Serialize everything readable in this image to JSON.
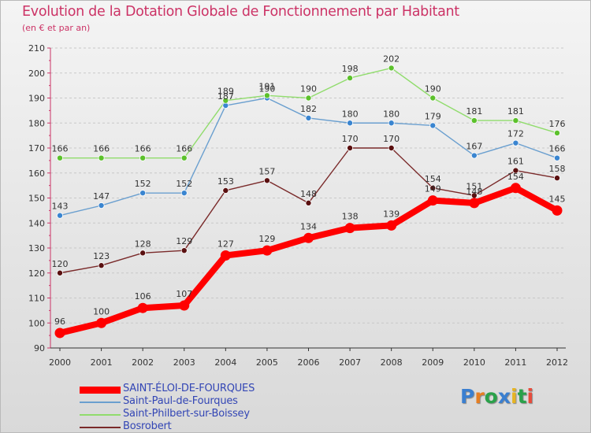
{
  "header": {
    "title": "Evolution de la Dotation Globale de Fonctionnement par Habitant",
    "subtitle": "(en € et par an)"
  },
  "logo": {
    "text": "Proxiti",
    "colors": [
      "#3a7fd0",
      "#e67e22",
      "#2aa14a",
      "#3a7fd0",
      "#e6b422",
      "#2aa14a",
      "#e74c3c"
    ]
  },
  "chart_data": {
    "type": "line",
    "title": "Evolution de la Dotation Globale de Fonctionnement par Habitant",
    "subtitle": "(en € et par an)",
    "xlabel": "",
    "ylabel": "",
    "x": [
      "2000",
      "2001",
      "2002",
      "2003",
      "2004",
      "2005",
      "2006",
      "2007",
      "2008",
      "2009",
      "2010",
      "2011",
      "2012"
    ],
    "ylim": [
      90,
      210
    ],
    "yticks": [
      90,
      100,
      110,
      120,
      130,
      140,
      150,
      160,
      170,
      180,
      190,
      200,
      210
    ],
    "grid": "horizontal dashed",
    "legend": "bottom-left",
    "series": [
      {
        "name": "SAINT-ÉLOI-DE-FOURQUES",
        "color": "#ff0000",
        "markerColor": "#ff0000",
        "emphasis": true,
        "values": [
          96,
          100,
          106,
          107,
          127,
          129,
          134,
          138,
          139,
          149,
          148,
          154,
          145
        ]
      },
      {
        "name": "Saint-Paul-de-Fourques",
        "color": "#6a9fcf",
        "markerColor": "#3a85d0",
        "emphasis": false,
        "values": [
          143,
          147,
          152,
          152,
          187,
          190,
          182,
          180,
          180,
          179,
          167,
          172,
          166
        ]
      },
      {
        "name": "Saint-Philbert-sur-Boissey",
        "color": "#90dc6c",
        "markerColor": "#5cc12c",
        "emphasis": false,
        "values": [
          166,
          166,
          166,
          166,
          189,
          191,
          190,
          198,
          202,
          190,
          181,
          181,
          176
        ]
      },
      {
        "name": "Bosrobert",
        "color": "#7a2a2a",
        "markerColor": "#5a1010",
        "emphasis": false,
        "values": [
          120,
          123,
          128,
          129,
          153,
          157,
          148,
          170,
          170,
          154,
          151,
          161,
          158
        ]
      }
    ]
  }
}
